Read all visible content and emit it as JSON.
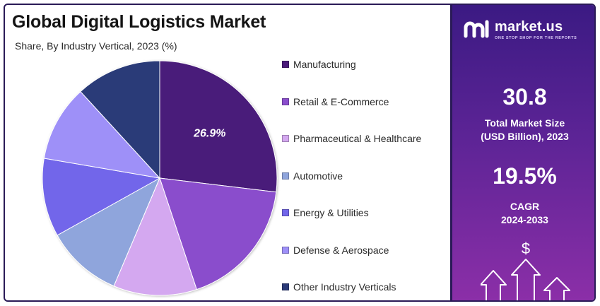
{
  "header": {
    "title": "Global Digital Logistics Market",
    "subtitle": "Share, By Industry Vertical, 2023 (%)"
  },
  "chart_data": {
    "type": "pie",
    "title": "Global Digital Logistics Market",
    "subtitle": "Share, By Industry Vertical, 2023 (%)",
    "categories": [
      "Manufacturing",
      "Retail & E-Commerce",
      "Pharmaceutical & Healthcare",
      "Automotive",
      "Energy & Utilities",
      "Defense & Aerospace",
      "Other Industry Verticals"
    ],
    "values": [
      26.9,
      18.0,
      11.5,
      10.5,
      10.8,
      10.5,
      11.8
    ],
    "colors": [
      "#4a1a7a",
      "#8a4dcc",
      "#d4a8f0",
      "#8fa5dc",
      "#7266ea",
      "#9e90f8",
      "#2b3a78"
    ],
    "data_labels": [
      "26.9%",
      "",
      "",
      "",
      "",
      "",
      ""
    ],
    "legend_position": "right"
  },
  "brand": {
    "name": "market.us",
    "tagline": "ONE STOP SHOP FOR THE REPORTS"
  },
  "stats": {
    "market_size_value": "30.8",
    "market_size_label": "Total Market Size\n(USD Billion), 2023",
    "cagr_value": "19.5%",
    "cagr_label": "CAGR\n2024-2033"
  },
  "decor": {
    "dollar_sign": "$"
  }
}
